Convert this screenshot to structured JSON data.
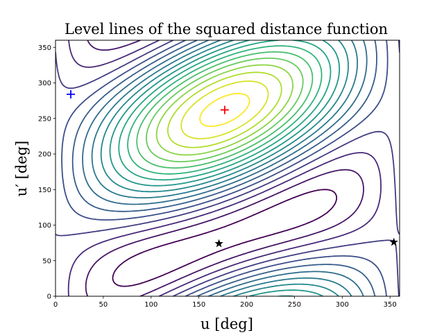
{
  "chart_data": {
    "type": "contour",
    "title": "Level lines of the squared distance function",
    "xlabel": "u [deg]",
    "ylabel": "u′ [deg]",
    "xlim": [
      0,
      360
    ],
    "ylim": [
      0,
      360
    ],
    "xticks": [
      0,
      50,
      100,
      150,
      200,
      250,
      300,
      350
    ],
    "yticks": [
      0,
      50,
      100,
      150,
      200,
      250,
      300,
      350
    ],
    "colormap": "viridis",
    "levels": 18,
    "grid": false,
    "markers": [
      {
        "name": "maximum",
        "symbol": "plus",
        "color": "#ff0000",
        "x": 177,
        "y": 262
      },
      {
        "name": "saddle",
        "symbol": "plus",
        "color": "#0000ff",
        "x": 16,
        "y": 284
      },
      {
        "name": "minimum-1",
        "symbol": "star",
        "color": "#000000",
        "x": 171,
        "y": 74
      },
      {
        "name": "minimum-2",
        "symbol": "star",
        "color": "#000000",
        "x": 354,
        "y": 76
      }
    ]
  }
}
